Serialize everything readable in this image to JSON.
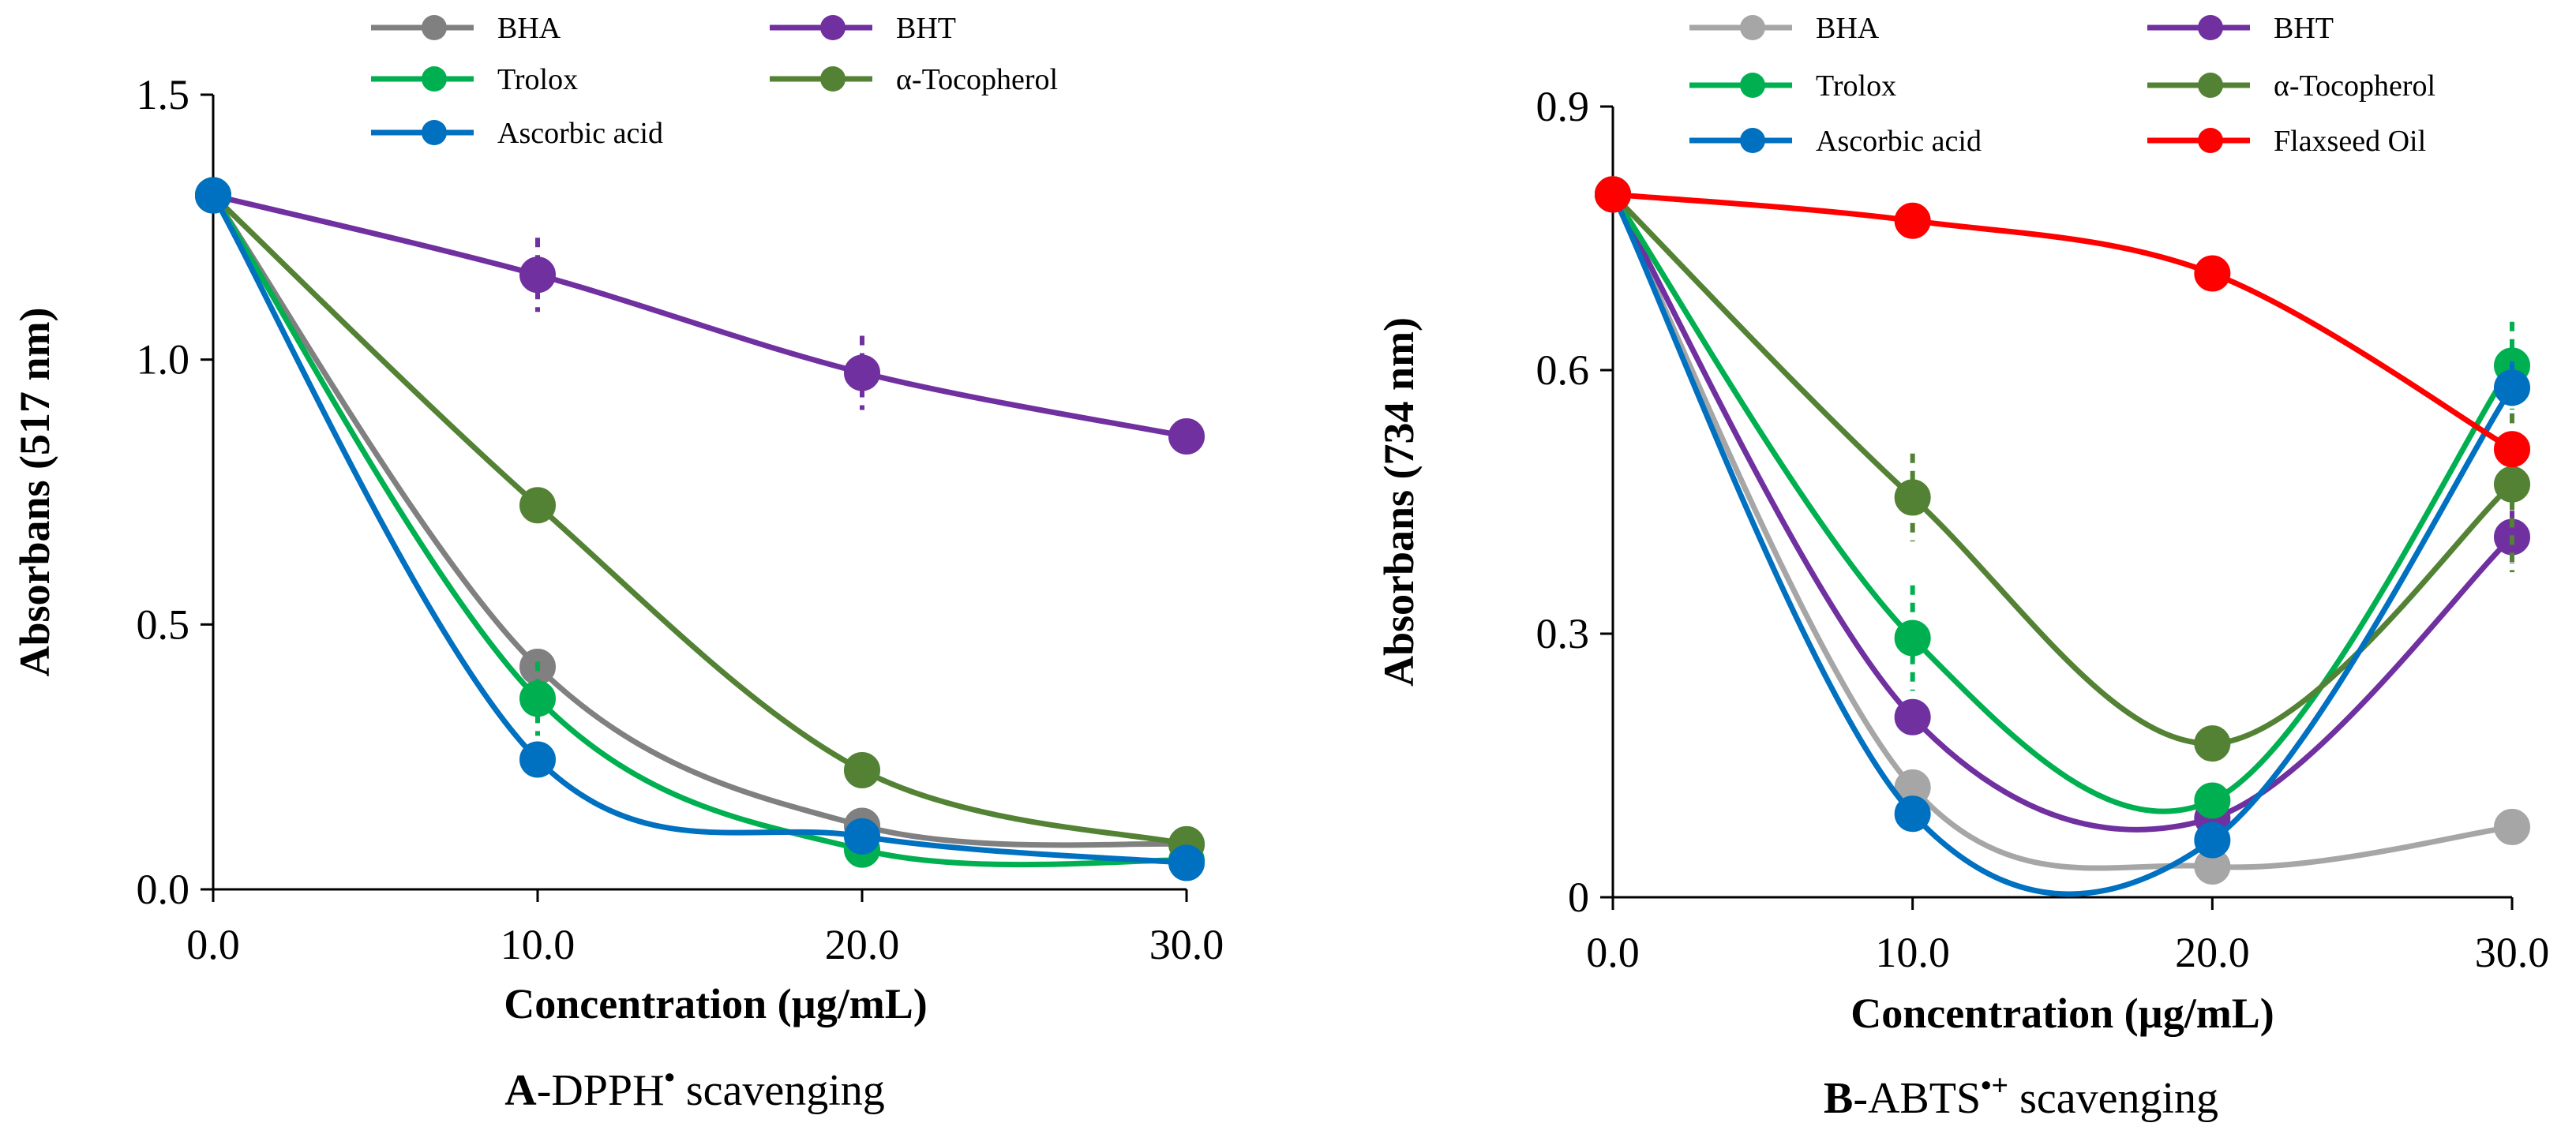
{
  "chart_data": [
    {
      "type": "line",
      "panel": "A",
      "caption": {
        "prefix": "A",
        "text": "-DPPH",
        "sup": "•",
        "suffix": " scavenging"
      },
      "xlabel": "Concentration (µg/mL)",
      "ylabel": "Absorbans (517 nm)",
      "x": [
        0,
        10,
        20,
        30
      ],
      "xlim": [
        0,
        30
      ],
      "ylim": [
        0,
        1.5
      ],
      "xticks": [
        "0.0",
        "10.0",
        "20.0",
        "30.0"
      ],
      "yticks": [
        {
          "value": 0,
          "label": "0.0"
        },
        {
          "value": 0.5,
          "label": "0.5"
        },
        {
          "value": 1.0,
          "label": "1.0"
        },
        {
          "value": 1.5,
          "label": "1.5"
        }
      ],
      "legend_position": "top",
      "series": [
        {
          "name": "BHA",
          "color": "#808080",
          "values": [
            1.31,
            0.42,
            0.12,
            0.085
          ],
          "errors": [
            0.02,
            0.02,
            0.02,
            0.01
          ]
        },
        {
          "name": "BHT",
          "color": "#7030a0",
          "values": [
            1.31,
            1.16,
            0.975,
            0.855
          ],
          "errors": [
            0.02,
            0.07,
            0.07,
            0.02
          ]
        },
        {
          "name": "Trolox",
          "color": "#00b050",
          "values": [
            1.31,
            0.36,
            0.075,
            0.055
          ],
          "errors": [
            0.02,
            0.07,
            0.02,
            0.01
          ]
        },
        {
          "name": "α-Tocopherol",
          "color": "#548235",
          "values": [
            1.31,
            0.725,
            0.225,
            0.085
          ],
          "errors": [
            0.02,
            0.02,
            0.02,
            0.01
          ]
        },
        {
          "name": "Ascorbic acid",
          "color": "#0070c0",
          "values": [
            1.31,
            0.245,
            0.1,
            0.05
          ],
          "errors": [
            0.02,
            0.02,
            0.02,
            0.01
          ]
        }
      ]
    },
    {
      "type": "line",
      "panel": "B",
      "caption": {
        "prefix": "B",
        "text": "-ABTS",
        "sup": "•+",
        "suffix": " scavenging"
      },
      "xlabel": "Concentration (µg/mL)",
      "ylabel": "Absorbans (734 nm)",
      "x": [
        0,
        10,
        20,
        30
      ],
      "xlim": [
        0,
        30
      ],
      "ylim": [
        0,
        0.9
      ],
      "xticks": [
        "0.0",
        "10.0",
        "20.0",
        "30.0"
      ],
      "yticks": [
        {
          "value": 0,
          "label": "0"
        },
        {
          "value": 0.3,
          "label": "0.3"
        },
        {
          "value": 0.6,
          "label": "0.6"
        },
        {
          "value": 0.9,
          "label": "0.9"
        }
      ],
      "legend_position": "top",
      "series": [
        {
          "name": "BHA",
          "color": "#a6a6a6",
          "values": [
            0.8,
            0.125,
            0.035,
            0.08
          ],
          "errors": [
            0.01,
            0.02,
            0.01,
            0.01
          ]
        },
        {
          "name": "BHT",
          "color": "#7030a0",
          "values": [
            0.8,
            0.205,
            0.09,
            0.41
          ],
          "errors": [
            0.01,
            0.02,
            0.01,
            0.03
          ]
        },
        {
          "name": "Trolox",
          "color": "#00b050",
          "values": [
            0.8,
            0.295,
            0.11,
            0.605
          ],
          "errors": [
            0.01,
            0.06,
            0.01,
            0.05
          ]
        },
        {
          "name": "α-Tocopherol",
          "color": "#548235",
          "values": [
            0.8,
            0.455,
            0.175,
            0.47
          ],
          "errors": [
            0.01,
            0.05,
            0.02,
            0.1
          ]
        },
        {
          "name": "Ascorbic acid",
          "color": "#0070c0",
          "values": [
            0.8,
            0.095,
            0.065,
            0.58
          ],
          "errors": [
            0.01,
            0.02,
            0.01,
            0.03
          ]
        },
        {
          "name": "Flaxseed Oil",
          "color": "#ff0000",
          "values": [
            0.8,
            0.77,
            0.71,
            0.51
          ],
          "errors": [
            0.01,
            0.01,
            0.01,
            0.02
          ]
        }
      ]
    }
  ]
}
